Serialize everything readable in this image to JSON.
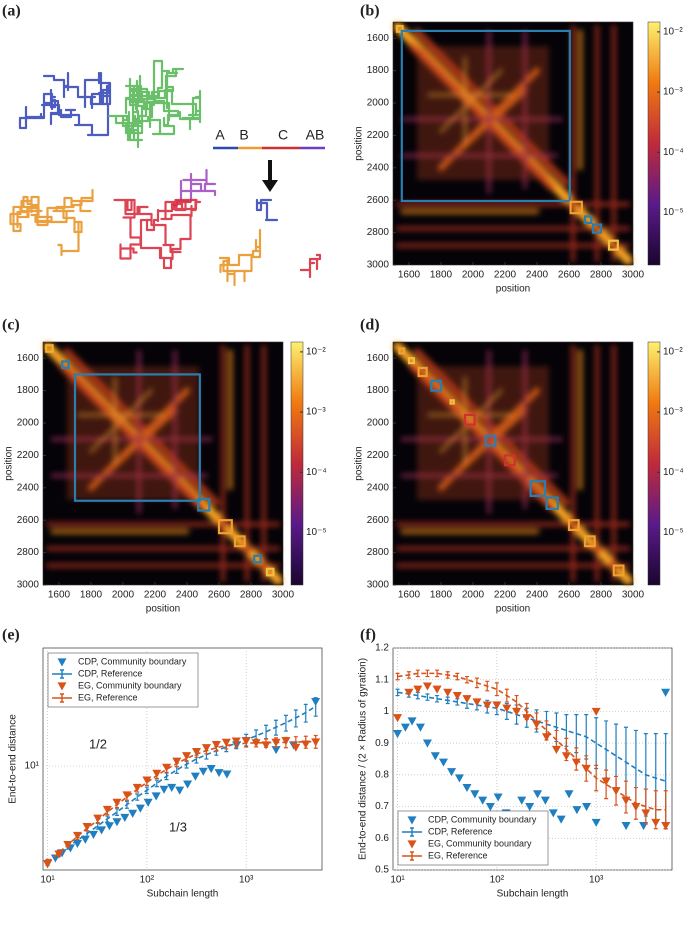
{
  "panel_labels": [
    "(a)",
    "(b)",
    "(c)",
    "(d)",
    "(e)",
    "(f)"
  ],
  "illustration": {
    "labels": [
      "A",
      "B",
      "C",
      "AB"
    ]
  },
  "chart_data": [
    {
      "type": "heatmap",
      "xlabel": "position",
      "ylabel": "position",
      "xlim": [
        1500,
        3000
      ],
      "ylim": [
        1500,
        3000
      ],
      "xticks": [
        1600,
        1800,
        2000,
        2200,
        2400,
        2600,
        2800,
        3000
      ],
      "yticks": [
        1600,
        1800,
        2000,
        2200,
        2400,
        2600,
        2800,
        3000
      ],
      "clim": [
        1.34e-06,
        0.0146
      ],
      "clog": true,
      "cticks": [
        {
          "value": 0.01,
          "label": "10⁻²"
        },
        {
          "value": 0.001,
          "label": "10⁻³"
        },
        {
          "value": 0.0001,
          "label": "10⁻⁴"
        },
        {
          "value": 1e-05,
          "label": "10⁻⁵"
        }
      ],
      "boxes": [
        {
          "start": 1525,
          "end": 1560,
          "color": "#f0b030"
        },
        {
          "start": 1555,
          "end": 2605,
          "color": "#2a7fb0"
        },
        {
          "start": 2610,
          "end": 2680,
          "color": "#f0a030"
        },
        {
          "start": 2700,
          "end": 2740,
          "color": "#2a7fb0"
        },
        {
          "start": 2750,
          "end": 2800,
          "color": "#2a7fb0"
        },
        {
          "start": 2850,
          "end": 2905,
          "color": "#f0c040"
        }
      ]
    },
    {
      "type": "heatmap",
      "xlabel": "position",
      "ylabel": "position",
      "xlim": [
        1500,
        3000
      ],
      "ylim": [
        1500,
        3000
      ],
      "xticks": [
        1600,
        1800,
        2000,
        2200,
        2400,
        2600,
        2800,
        3000
      ],
      "yticks": [
        1600,
        1800,
        2000,
        2200,
        2400,
        2600,
        2800,
        3000
      ],
      "clim": [
        1.34e-06,
        0.0146
      ],
      "clog": true,
      "cticks": [
        {
          "value": 0.01,
          "label": "10⁻²"
        },
        {
          "value": 0.001,
          "label": "10⁻³"
        },
        {
          "value": 0.0001,
          "label": "10⁻⁴"
        },
        {
          "value": 1e-05,
          "label": "10⁻⁵"
        }
      ],
      "boxes": [
        {
          "start": 1520,
          "end": 1560,
          "color": "#f0b030"
        },
        {
          "start": 1620,
          "end": 1660,
          "color": "#2a7fb0"
        },
        {
          "start": 1700,
          "end": 2480,
          "color": "#2a7fb0"
        },
        {
          "start": 2470,
          "end": 2540,
          "color": "#2a7fb0"
        },
        {
          "start": 2600,
          "end": 2680,
          "color": "#f0a030"
        },
        {
          "start": 2700,
          "end": 2760,
          "color": "#f0a030"
        },
        {
          "start": 2820,
          "end": 2860,
          "color": "#2a7fb0"
        },
        {
          "start": 2900,
          "end": 2940,
          "color": "#f0c040"
        }
      ]
    },
    {
      "type": "heatmap",
      "xlabel": "position",
      "ylabel": "position",
      "xlim": [
        1500,
        3000
      ],
      "ylim": [
        1500,
        3000
      ],
      "xticks": [
        1600,
        1800,
        2000,
        2200,
        2400,
        2600,
        2800,
        3000
      ],
      "yticks": [
        1600,
        1800,
        2000,
        2200,
        2400,
        2600,
        2800,
        3000
      ],
      "clim": [
        1.34e-06,
        0.0146
      ],
      "clog": true,
      "cticks": [
        {
          "value": 0.01,
          "label": "10⁻²"
        },
        {
          "value": 0.001,
          "label": "10⁻³"
        },
        {
          "value": 0.0001,
          "label": "10⁻⁴"
        },
        {
          "value": 1e-05,
          "label": "10⁻⁵"
        }
      ],
      "boxes": [
        {
          "start": 1540,
          "end": 1570,
          "color": "#f0a030"
        },
        {
          "start": 1600,
          "end": 1630,
          "color": "#f0c040"
        },
        {
          "start": 1660,
          "end": 1710,
          "color": "#f0a030"
        },
        {
          "start": 1740,
          "end": 1800,
          "color": "#2a7fb0"
        },
        {
          "start": 1860,
          "end": 1880,
          "color": "#f0c040"
        },
        {
          "start": 1950,
          "end": 2010,
          "color": "#d03030"
        },
        {
          "start": 2080,
          "end": 2140,
          "color": "#2a7fb0"
        },
        {
          "start": 2200,
          "end": 2260,
          "color": "#d03030"
        },
        {
          "start": 2360,
          "end": 2450,
          "color": "#2a7fb0"
        },
        {
          "start": 2460,
          "end": 2530,
          "color": "#2a7fb0"
        },
        {
          "start": 2600,
          "end": 2660,
          "color": "#f0a030"
        },
        {
          "start": 2700,
          "end": 2760,
          "color": "#f0a030"
        },
        {
          "start": 2880,
          "end": 2940,
          "color": "#f0a030"
        }
      ]
    },
    {
      "type": "line",
      "xlabel": "Subchain length",
      "ylabel": "End-to-end distance",
      "xlog": true,
      "ylog": true,
      "grid": true,
      "legend": "upper left",
      "xlim": [
        9,
        5800
      ],
      "ylim": [
        1.9,
        66
      ],
      "xticks": [
        {
          "value": 10,
          "label": "10¹"
        },
        {
          "value": 100,
          "label": "10²"
        },
        {
          "value": 1000,
          "label": "10³"
        }
      ],
      "yticks": [
        {
          "value": 10,
          "label": "10¹"
        }
      ],
      "annotations": [
        "1/2",
        "1/3"
      ],
      "series": [
        {
          "name": "CDP, Community boundary",
          "color": "#1f7fc0",
          "style": "markers",
          "x": [
            10,
            12,
            14,
            17,
            20,
            24,
            29,
            35,
            42,
            50,
            60,
            72,
            86,
            103,
            124,
            149,
            178,
            214,
            257,
            308,
            370,
            444,
            533,
            640,
            800,
            1000,
            2000,
            3000,
            5000
          ],
          "values": [
            2.1,
            2.3,
            2.5,
            2.7,
            2.9,
            3.1,
            3.35,
            3.6,
            3.85,
            4.1,
            4.4,
            4.7,
            5.1,
            5.6,
            6.2,
            6.9,
            7.1,
            6.8,
            7.5,
            8.5,
            9.2,
            9.6,
            9.0,
            8.8,
            14.0,
            15.0,
            13.0,
            14.0,
            28.0
          ]
        },
        {
          "name": "CDP, Reference",
          "color": "#1f7fc0",
          "style": "errorbar",
          "x": [
            10,
            13,
            16,
            20,
            25,
            32,
            40,
            50,
            63,
            80,
            100,
            126,
            158,
            200,
            251,
            316,
            398,
            501,
            631,
            794,
            1000,
            1259,
            1585,
            1995,
            2512,
            3162,
            3981,
            5012
          ],
          "values": [
            2.15,
            2.45,
            2.75,
            3.05,
            3.4,
            3.85,
            4.3,
            4.8,
            5.4,
            6.1,
            6.8,
            7.6,
            8.5,
            9.4,
            10.3,
            11.2,
            12.0,
            12.8,
            13.6,
            14.4,
            15.2,
            16.2,
            17.3,
            18.6,
            20.0,
            21.6,
            23.5,
            26.0
          ],
          "errors": [
            0.1,
            0.1,
            0.1,
            0.15,
            0.15,
            0.2,
            0.2,
            0.25,
            0.3,
            0.3,
            0.35,
            0.4,
            0.45,
            0.5,
            0.6,
            0.7,
            0.8,
            0.9,
            1.0,
            1.2,
            1.4,
            1.6,
            1.9,
            2.2,
            2.5,
            2.9,
            3.3,
            3.8
          ]
        },
        {
          "name": "EG, Community boundary",
          "color": "#d95319",
          "style": "markers",
          "x": [
            10,
            13,
            16,
            20,
            25,
            32,
            40,
            50,
            63,
            80,
            100,
            126,
            158,
            200,
            251,
            316,
            398,
            501,
            631,
            794,
            1000,
            1259,
            1585,
            1995,
            2512,
            3162,
            3981,
            5012
          ],
          "values": [
            2.1,
            2.45,
            2.85,
            3.3,
            3.8,
            4.35,
            5.0,
            5.6,
            6.3,
            7.1,
            8.0,
            8.9,
            9.8,
            10.8,
            11.8,
            12.6,
            13.4,
            14.1,
            14.6,
            14.9,
            15.0,
            14.5,
            14.0,
            14.6,
            15.0,
            13.5,
            14.2,
            14.7
          ]
        },
        {
          "name": "EG, Reference",
          "color": "#d95319",
          "style": "errorbar",
          "x": [
            10,
            13,
            16,
            20,
            25,
            32,
            40,
            50,
            63,
            80,
            100,
            126,
            158,
            200,
            251,
            316,
            398,
            501,
            631,
            794,
            1000,
            1259,
            1585,
            1995,
            2512,
            3162,
            3981,
            5012
          ],
          "values": [
            2.15,
            2.5,
            2.85,
            3.25,
            3.7,
            4.2,
            4.8,
            5.4,
            6.1,
            6.9,
            7.7,
            8.6,
            9.5,
            10.4,
            11.3,
            12.1,
            12.8,
            13.4,
            13.9,
            14.2,
            14.4,
            14.5,
            14.5,
            14.6,
            14.6,
            14.7,
            14.7,
            14.8
          ],
          "errors": [
            0.1,
            0.1,
            0.1,
            0.15,
            0.15,
            0.2,
            0.2,
            0.25,
            0.3,
            0.3,
            0.35,
            0.4,
            0.45,
            0.5,
            0.55,
            0.6,
            0.65,
            0.7,
            0.75,
            0.8,
            0.85,
            0.9,
            1.0,
            1.1,
            1.2,
            1.3,
            1.4,
            1.5
          ]
        }
      ]
    },
    {
      "type": "line",
      "xlabel": "Subchain length",
      "ylabel": "End-to-end distance / (2 × Radius of gyration)",
      "xlog": true,
      "ylog": false,
      "grid": true,
      "legend": "lower left",
      "xlim": [
        9,
        5800
      ],
      "ylim": [
        0.5,
        1.2
      ],
      "xticks": [
        {
          "value": 10,
          "label": "10¹"
        },
        {
          "value": 100,
          "label": "10²"
        },
        {
          "value": 1000,
          "label": "10³"
        }
      ],
      "yticks": [
        0.5,
        0.6,
        0.7,
        0.8,
        0.9,
        1,
        1.1,
        1.2
      ],
      "series": [
        {
          "name": "CDP, Community boundary",
          "color": "#1f7fc0",
          "style": "markers",
          "x": [
            10,
            12,
            14,
            17,
            20,
            24,
            29,
            35,
            42,
            50,
            60,
            72,
            86,
            103,
            124,
            149,
            178,
            214,
            257,
            308,
            370,
            444,
            533,
            640,
            800,
            1000,
            2000,
            3000,
            5000
          ],
          "values": [
            0.93,
            0.95,
            0.97,
            0.95,
            0.9,
            0.86,
            0.84,
            0.81,
            0.79,
            0.76,
            0.74,
            0.72,
            0.7,
            0.73,
            0.68,
            0.66,
            0.72,
            0.7,
            0.74,
            0.72,
            0.68,
            0.66,
            0.74,
            0.69,
            0.7,
            0.65,
            0.64,
            0.64,
            1.06
          ]
        },
        {
          "name": "CDP, Reference",
          "color": "#1f7fc0",
          "style": "errorbar",
          "x": [
            10,
            13,
            16,
            20,
            25,
            32,
            40,
            50,
            63,
            80,
            100,
            126,
            158,
            200,
            251,
            316,
            398,
            501,
            631,
            794,
            1000,
            1259,
            1585,
            1995,
            2512,
            3162,
            3981,
            5012
          ],
          "values": [
            1.06,
            1.055,
            1.05,
            1.045,
            1.04,
            1.035,
            1.03,
            1.025,
            1.02,
            1.015,
            1.01,
            1.0,
            0.99,
            0.98,
            0.97,
            0.96,
            0.95,
            0.94,
            0.93,
            0.92,
            0.9,
            0.88,
            0.86,
            0.84,
            0.82,
            0.8,
            0.79,
            0.78
          ],
          "errors": [
            0.01,
            0.01,
            0.01,
            0.01,
            0.01,
            0.01,
            0.01,
            0.015,
            0.015,
            0.02,
            0.02,
            0.025,
            0.03,
            0.03,
            0.035,
            0.04,
            0.045,
            0.05,
            0.06,
            0.07,
            0.08,
            0.09,
            0.1,
            0.11,
            0.12,
            0.13,
            0.14,
            0.15
          ]
        },
        {
          "name": "EG, Community boundary",
          "color": "#d95319",
          "style": "markers",
          "x": [
            10,
            13,
            16,
            20,
            25,
            32,
            40,
            50,
            63,
            80,
            100,
            126,
            158,
            200,
            251,
            316,
            398,
            501,
            631,
            794,
            1000,
            1259,
            1585,
            1995,
            2512,
            3162,
            3981,
            5012
          ],
          "values": [
            0.98,
            1.06,
            1.07,
            1.08,
            1.07,
            1.06,
            1.05,
            1.04,
            1.03,
            1.02,
            1.02,
            1.01,
            1.0,
            0.98,
            0.96,
            0.92,
            0.88,
            0.86,
            0.84,
            0.82,
            1.0,
            0.78,
            0.75,
            0.72,
            0.7,
            0.68,
            0.65,
            0.64
          ]
        },
        {
          "name": "EG, Reference",
          "color": "#d95319",
          "style": "errorbar",
          "x": [
            10,
            13,
            16,
            20,
            25,
            32,
            40,
            50,
            63,
            80,
            100,
            126,
            158,
            200,
            251,
            316,
            398,
            501,
            631,
            794,
            1000,
            1259,
            1585,
            1995,
            2512,
            3162,
            3981,
            5012
          ],
          "values": [
            1.11,
            1.115,
            1.12,
            1.12,
            1.12,
            1.115,
            1.11,
            1.1,
            1.09,
            1.08,
            1.07,
            1.05,
            1.03,
            1.0,
            0.97,
            0.94,
            0.91,
            0.88,
            0.85,
            0.82,
            0.79,
            0.77,
            0.75,
            0.73,
            0.71,
            0.7,
            0.69,
            0.69
          ],
          "errors": [
            0.01,
            0.01,
            0.01,
            0.01,
            0.01,
            0.01,
            0.01,
            0.01,
            0.015,
            0.015,
            0.02,
            0.02,
            0.02,
            0.025,
            0.025,
            0.03,
            0.03,
            0.035,
            0.035,
            0.04,
            0.04,
            0.045,
            0.045,
            0.05,
            0.05,
            0.055,
            0.06,
            0.06
          ]
        }
      ]
    }
  ]
}
